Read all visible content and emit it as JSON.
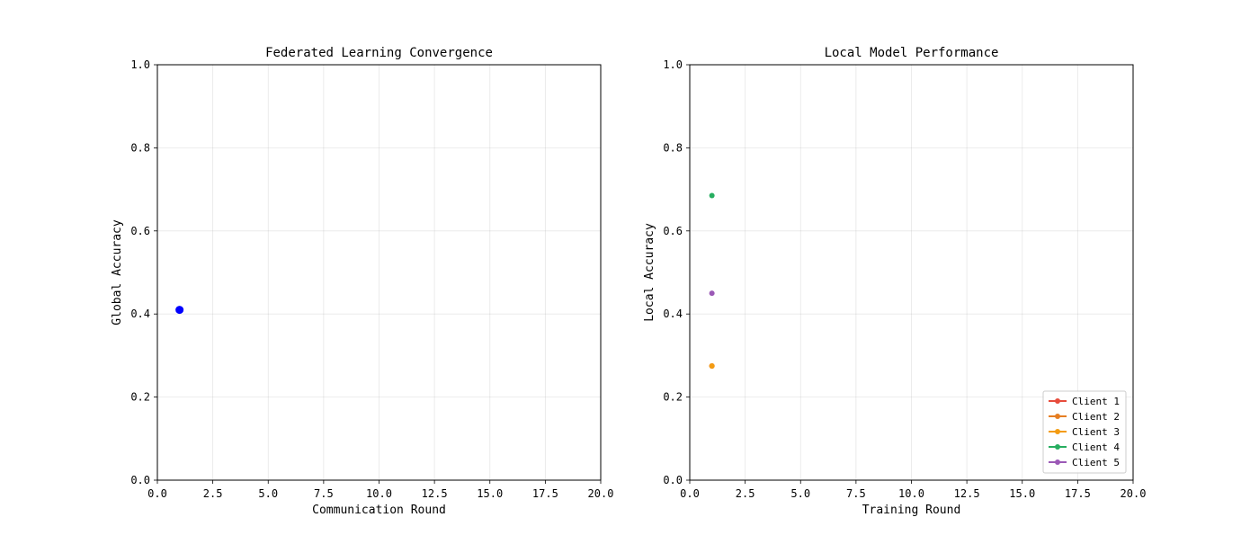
{
  "chart_data": [
    {
      "type": "scatter",
      "title": "Federated Learning Convergence",
      "xlabel": "Communication Round",
      "ylabel": "Global Accuracy",
      "xlim": [
        0,
        20
      ],
      "ylim": [
        0,
        1
      ],
      "xticks": [
        "0.0",
        "2.5",
        "5.0",
        "7.5",
        "10.0",
        "12.5",
        "15.0",
        "17.5",
        "20.0"
      ],
      "xtick_values": [
        0,
        2.5,
        5,
        7.5,
        10,
        12.5,
        15,
        17.5,
        20
      ],
      "yticks": [
        "0.0",
        "0.2",
        "0.4",
        "0.6",
        "0.8",
        "1.0"
      ],
      "ytick_values": [
        0,
        0.2,
        0.4,
        0.6,
        0.8,
        1.0
      ],
      "grid": true,
      "series": [
        {
          "color": "#0000ff",
          "points": [
            {
              "x": 1,
              "y": 0.41
            }
          ]
        }
      ]
    },
    {
      "type": "line",
      "title": "Local Model Performance",
      "xlabel": "Training Round",
      "ylabel": "Local Accuracy",
      "xlim": [
        0,
        20
      ],
      "ylim": [
        0,
        1
      ],
      "xticks": [
        "0.0",
        "2.5",
        "5.0",
        "7.5",
        "10.0",
        "12.5",
        "15.0",
        "17.5",
        "20.0"
      ],
      "xtick_values": [
        0,
        2.5,
        5,
        7.5,
        10,
        12.5,
        15,
        17.5,
        20
      ],
      "yticks": [
        "0.0",
        "0.2",
        "0.4",
        "0.6",
        "0.8",
        "1.0"
      ],
      "ytick_values": [
        0,
        0.2,
        0.4,
        0.6,
        0.8,
        1.0
      ],
      "grid": true,
      "legend": "lower-right",
      "series": [
        {
          "name": "Client 1",
          "color": "#e74c3c",
          "points": [
            {
              "x": 1,
              "y": 0.275
            }
          ]
        },
        {
          "name": "Client 2",
          "color": "#e67e22",
          "points": [
            {
              "x": 1,
              "y": 0.275
            }
          ]
        },
        {
          "name": "Client 3",
          "color": "#f39c12",
          "points": [
            {
              "x": 1,
              "y": 0.275
            }
          ]
        },
        {
          "name": "Client 4",
          "color": "#27ae60",
          "points": [
            {
              "x": 1,
              "y": 0.685
            }
          ]
        },
        {
          "name": "Client 5",
          "color": "#9b59b6",
          "points": [
            {
              "x": 1,
              "y": 0.45
            }
          ]
        }
      ]
    }
  ]
}
